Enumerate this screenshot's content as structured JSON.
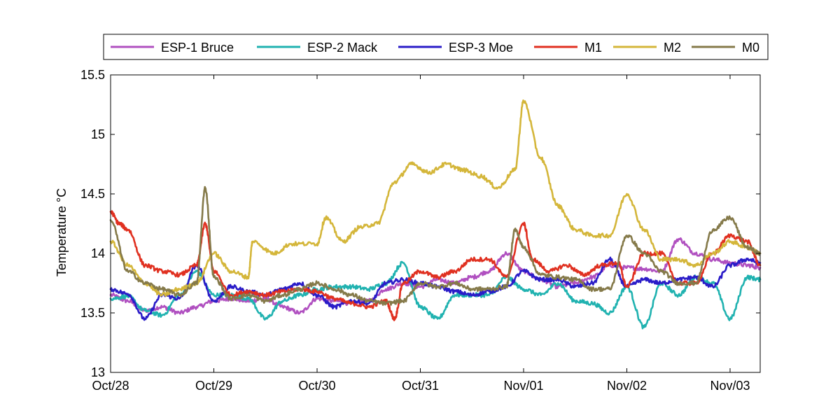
{
  "chart_data": {
    "type": "line",
    "title": "",
    "xlabel": "",
    "ylabel": "Temperature °C",
    "ylim": [
      13,
      15.5
    ],
    "xlim": [
      "2013-10-28",
      "2013-11-03T07:00"
    ],
    "yticks": [
      13,
      13.5,
      14,
      14.5,
      15,
      15.5
    ],
    "ytick_labels": [
      "13",
      "13.5",
      "14",
      "14.5",
      "15",
      "15.5"
    ],
    "xticks": [
      "2013-10-28",
      "2013-10-29",
      "2013-10-30",
      "2013-10-31",
      "2013-11-01",
      "2013-11-02",
      "2013-11-03"
    ],
    "xtick_labels": [
      "Oct/28",
      "Oct/29",
      "Oct/30",
      "Oct/31",
      "Nov/01",
      "Nov/02",
      "Nov/03"
    ],
    "grid": false,
    "legend": {
      "position": "top",
      "orientation": "horizontal"
    },
    "series": [
      {
        "name": "ESP-1 Bruce",
        "color": "#b050c0",
        "points": [
          [
            "2013-10-28T00:00",
            13.65
          ],
          [
            "2013-10-28T04:00",
            13.6
          ],
          [
            "2013-10-28T08:00",
            13.52
          ],
          [
            "2013-10-28T12:00",
            13.55
          ],
          [
            "2013-10-28T16:00",
            13.5
          ],
          [
            "2013-10-28T20:00",
            13.55
          ],
          [
            "2013-10-29T00:00",
            13.6
          ],
          [
            "2013-10-29T04:00",
            13.62
          ],
          [
            "2013-10-29T08:00",
            13.6
          ],
          [
            "2013-10-29T12:00",
            13.62
          ],
          [
            "2013-10-29T16:00",
            13.55
          ],
          [
            "2013-10-29T20:00",
            13.5
          ],
          [
            "2013-10-30T00:00",
            13.62
          ],
          [
            "2013-10-30T04:00",
            13.6
          ],
          [
            "2013-10-30T08:00",
            13.58
          ],
          [
            "2013-10-30T12:00",
            13.6
          ],
          [
            "2013-10-30T16:00",
            13.7
          ],
          [
            "2013-10-30T20:00",
            13.75
          ],
          [
            "2013-10-31T00:00",
            13.72
          ],
          [
            "2013-10-31T04:00",
            13.78
          ],
          [
            "2013-10-31T08:00",
            13.75
          ],
          [
            "2013-10-31T12:00",
            13.8
          ],
          [
            "2013-10-31T16:00",
            13.85
          ],
          [
            "2013-10-31T20:00",
            14.0
          ],
          [
            "2013-11-01T00:00",
            13.85
          ],
          [
            "2013-11-01T04:00",
            13.78
          ],
          [
            "2013-11-01T08:00",
            13.72
          ],
          [
            "2013-11-01T12:00",
            13.75
          ],
          [
            "2013-11-01T16:00",
            13.8
          ],
          [
            "2013-11-01T20:00",
            13.9
          ],
          [
            "2013-11-02T00:00",
            13.88
          ],
          [
            "2013-11-02T04:00",
            13.87
          ],
          [
            "2013-11-02T08:00",
            13.85
          ],
          [
            "2013-11-02T12:00",
            14.12
          ],
          [
            "2013-11-02T16:00",
            14.0
          ],
          [
            "2013-11-02T20:00",
            13.95
          ],
          [
            "2013-11-03T00:00",
            13.92
          ],
          [
            "2013-11-03T04:00",
            13.9
          ],
          [
            "2013-11-03T07:00",
            13.88
          ]
        ]
      },
      {
        "name": "ESP-2 Mack",
        "color": "#20b2b0",
        "points": [
          [
            "2013-10-28T00:00",
            13.62
          ],
          [
            "2013-10-28T04:00",
            13.64
          ],
          [
            "2013-10-28T08:00",
            13.52
          ],
          [
            "2013-10-28T12:00",
            13.48
          ],
          [
            "2013-10-28T16:00",
            13.65
          ],
          [
            "2013-10-28T20:00",
            13.85
          ],
          [
            "2013-10-29T00:00",
            13.65
          ],
          [
            "2013-10-29T04:00",
            13.65
          ],
          [
            "2013-10-29T08:00",
            13.62
          ],
          [
            "2013-10-29T12:00",
            13.45
          ],
          [
            "2013-10-29T16:00",
            13.6
          ],
          [
            "2013-10-29T20:00",
            13.65
          ],
          [
            "2013-10-30T00:00",
            13.7
          ],
          [
            "2013-10-30T04:00",
            13.72
          ],
          [
            "2013-10-30T08:00",
            13.72
          ],
          [
            "2013-10-30T12:00",
            13.7
          ],
          [
            "2013-10-30T16:00",
            13.75
          ],
          [
            "2013-10-30T20:00",
            13.92
          ],
          [
            "2013-10-31T00:00",
            13.55
          ],
          [
            "2013-10-31T04:00",
            13.45
          ],
          [
            "2013-10-31T08:00",
            13.65
          ],
          [
            "2013-10-31T12:00",
            13.65
          ],
          [
            "2013-10-31T16:00",
            13.65
          ],
          [
            "2013-10-31T20:00",
            13.8
          ],
          [
            "2013-11-01T00:00",
            13.7
          ],
          [
            "2013-11-01T04:00",
            13.65
          ],
          [
            "2013-11-01T08:00",
            13.75
          ],
          [
            "2013-11-01T12:00",
            13.6
          ],
          [
            "2013-11-01T16:00",
            13.58
          ],
          [
            "2013-11-01T20:00",
            13.5
          ],
          [
            "2013-11-02T00:00",
            13.72
          ],
          [
            "2013-11-02T04:00",
            13.38
          ],
          [
            "2013-11-02T08:00",
            13.75
          ],
          [
            "2013-11-02T12:00",
            13.65
          ],
          [
            "2013-11-02T16:00",
            13.8
          ],
          [
            "2013-11-02T20:00",
            13.75
          ],
          [
            "2013-11-03T00:00",
            13.45
          ],
          [
            "2013-11-03T04:00",
            13.8
          ],
          [
            "2013-11-03T07:00",
            13.78
          ]
        ]
      },
      {
        "name": "ESP-3 Moe",
        "color": "#2a1cc8",
        "points": [
          [
            "2013-10-28T00:00",
            13.7
          ],
          [
            "2013-10-28T04:00",
            13.66
          ],
          [
            "2013-10-28T08:00",
            13.45
          ],
          [
            "2013-10-28T12:00",
            13.65
          ],
          [
            "2013-10-28T16:00",
            13.62
          ],
          [
            "2013-10-28T20:00",
            13.9
          ],
          [
            "2013-10-29T00:00",
            13.6
          ],
          [
            "2013-10-29T04:00",
            13.72
          ],
          [
            "2013-10-29T08:00",
            13.68
          ],
          [
            "2013-10-29T12:00",
            13.65
          ],
          [
            "2013-10-29T16:00",
            13.7
          ],
          [
            "2013-10-29T20:00",
            13.75
          ],
          [
            "2013-10-30T00:00",
            13.65
          ],
          [
            "2013-10-30T04:00",
            13.55
          ],
          [
            "2013-10-30T08:00",
            13.6
          ],
          [
            "2013-10-30T12:00",
            13.58
          ],
          [
            "2013-10-30T16:00",
            13.75
          ],
          [
            "2013-10-30T20:00",
            13.78
          ],
          [
            "2013-10-31T00:00",
            13.75
          ],
          [
            "2013-10-31T04:00",
            13.72
          ],
          [
            "2013-10-31T08:00",
            13.68
          ],
          [
            "2013-10-31T12:00",
            13.65
          ],
          [
            "2013-10-31T16:00",
            13.68
          ],
          [
            "2013-10-31T20:00",
            13.72
          ],
          [
            "2013-11-01T00:00",
            13.85
          ],
          [
            "2013-11-01T04:00",
            13.78
          ],
          [
            "2013-11-01T08:00",
            13.78
          ],
          [
            "2013-11-01T12:00",
            13.72
          ],
          [
            "2013-11-01T16:00",
            13.75
          ],
          [
            "2013-11-01T20:00",
            13.95
          ],
          [
            "2013-11-02T00:00",
            13.72
          ],
          [
            "2013-11-02T04:00",
            13.78
          ],
          [
            "2013-11-02T08:00",
            13.75
          ],
          [
            "2013-11-02T12:00",
            13.78
          ],
          [
            "2013-11-02T16:00",
            13.8
          ],
          [
            "2013-11-02T20:00",
            13.72
          ],
          [
            "2013-11-03T00:00",
            13.9
          ],
          [
            "2013-11-03T04:00",
            13.95
          ],
          [
            "2013-11-03T07:00",
            13.92
          ]
        ]
      },
      {
        "name": "M1",
        "color": "#e03020",
        "points": [
          [
            "2013-10-28T00:00",
            14.35
          ],
          [
            "2013-10-28T02:00",
            14.25
          ],
          [
            "2013-10-28T04:00",
            14.2
          ],
          [
            "2013-10-28T08:00",
            13.9
          ],
          [
            "2013-10-28T12:00",
            13.85
          ],
          [
            "2013-10-28T16:00",
            13.82
          ],
          [
            "2013-10-28T20:00",
            13.9
          ],
          [
            "2013-10-28T22:00",
            14.25
          ],
          [
            "2013-10-29T00:00",
            13.85
          ],
          [
            "2013-10-29T04:00",
            13.65
          ],
          [
            "2013-10-29T08:00",
            13.68
          ],
          [
            "2013-10-29T12:00",
            13.65
          ],
          [
            "2013-10-29T16:00",
            13.68
          ],
          [
            "2013-10-29T20:00",
            13.7
          ],
          [
            "2013-10-30T00:00",
            13.68
          ],
          [
            "2013-10-30T04:00",
            13.62
          ],
          [
            "2013-10-30T08:00",
            13.58
          ],
          [
            "2013-10-30T12:00",
            13.55
          ],
          [
            "2013-10-30T16:00",
            13.6
          ],
          [
            "2013-10-30T18:00",
            13.45
          ],
          [
            "2013-10-30T20:00",
            13.75
          ],
          [
            "2013-10-31T00:00",
            13.85
          ],
          [
            "2013-10-31T04:00",
            13.8
          ],
          [
            "2013-10-31T08:00",
            13.85
          ],
          [
            "2013-10-31T12:00",
            13.95
          ],
          [
            "2013-10-31T16:00",
            13.95
          ],
          [
            "2013-10-31T20:00",
            13.8
          ],
          [
            "2013-11-01T00:00",
            14.25
          ],
          [
            "2013-11-01T02:00",
            13.95
          ],
          [
            "2013-11-01T06:00",
            13.85
          ],
          [
            "2013-11-01T10:00",
            13.9
          ],
          [
            "2013-11-01T14:00",
            13.82
          ],
          [
            "2013-11-01T18:00",
            13.9
          ],
          [
            "2013-11-01T22:00",
            13.92
          ],
          [
            "2013-11-02T00:00",
            13.72
          ],
          [
            "2013-11-02T04:00",
            14.0
          ],
          [
            "2013-11-02T08:00",
            14.0
          ],
          [
            "2013-11-02T12:00",
            13.75
          ],
          [
            "2013-11-02T16:00",
            13.75
          ],
          [
            "2013-11-02T20:00",
            14.0
          ],
          [
            "2013-11-03T00:00",
            14.15
          ],
          [
            "2013-11-03T04:00",
            14.1
          ],
          [
            "2013-11-03T07:00",
            13.9
          ]
        ]
      },
      {
        "name": "M2",
        "color": "#d4b63a",
        "points": [
          [
            "2013-10-28T00:00",
            14.1
          ],
          [
            "2013-10-28T04:00",
            13.9
          ],
          [
            "2013-10-28T08:00",
            13.75
          ],
          [
            "2013-10-28T12:00",
            13.65
          ],
          [
            "2013-10-28T16:00",
            13.7
          ],
          [
            "2013-10-28T20:00",
            13.75
          ],
          [
            "2013-10-29T00:00",
            14.0
          ],
          [
            "2013-10-29T04:00",
            13.85
          ],
          [
            "2013-10-29T08:00",
            13.8
          ],
          [
            "2013-10-29T09:00",
            14.1
          ],
          [
            "2013-10-29T14:00",
            14.0
          ],
          [
            "2013-10-29T18:00",
            14.08
          ],
          [
            "2013-10-30T00:00",
            14.08
          ],
          [
            "2013-10-30T02:00",
            14.3
          ],
          [
            "2013-10-30T06:00",
            14.1
          ],
          [
            "2013-10-30T10:00",
            14.22
          ],
          [
            "2013-10-30T14:00",
            14.25
          ],
          [
            "2013-10-30T18:00",
            14.6
          ],
          [
            "2013-10-30T22:00",
            14.75
          ],
          [
            "2013-10-31T02:00",
            14.68
          ],
          [
            "2013-10-31T06:00",
            14.75
          ],
          [
            "2013-10-31T10:00",
            14.7
          ],
          [
            "2013-10-31T14:00",
            14.65
          ],
          [
            "2013-10-31T18:00",
            14.55
          ],
          [
            "2013-10-31T22:00",
            14.7
          ],
          [
            "2013-11-01T00:00",
            15.28
          ],
          [
            "2013-11-01T04:00",
            14.8
          ],
          [
            "2013-11-01T08:00",
            14.4
          ],
          [
            "2013-11-01T12:00",
            14.2
          ],
          [
            "2013-11-01T16:00",
            14.15
          ],
          [
            "2013-11-01T20:00",
            14.15
          ],
          [
            "2013-11-02T00:00",
            14.5
          ],
          [
            "2013-11-02T04:00",
            14.2
          ],
          [
            "2013-11-02T08:00",
            13.95
          ],
          [
            "2013-11-02T12:00",
            13.95
          ],
          [
            "2013-11-02T16:00",
            13.9
          ],
          [
            "2013-11-02T20:00",
            14.0
          ],
          [
            "2013-11-03T00:00",
            14.1
          ],
          [
            "2013-11-03T04:00",
            14.05
          ],
          [
            "2013-11-03T07:00",
            14.0
          ]
        ]
      },
      {
        "name": "M0",
        "color": "#857a4a",
        "points": [
          [
            "2013-10-28T00:00",
            14.28
          ],
          [
            "2013-10-28T04:00",
            13.85
          ],
          [
            "2013-10-28T08:00",
            13.75
          ],
          [
            "2013-10-28T12:00",
            13.7
          ],
          [
            "2013-10-28T16:00",
            13.65
          ],
          [
            "2013-10-28T20:00",
            13.75
          ],
          [
            "2013-10-28T22:00",
            14.55
          ],
          [
            "2013-10-29T00:00",
            13.8
          ],
          [
            "2013-10-29T04:00",
            13.62
          ],
          [
            "2013-10-29T08:00",
            13.65
          ],
          [
            "2013-10-29T12:00",
            13.6
          ],
          [
            "2013-10-29T16:00",
            13.65
          ],
          [
            "2013-10-29T20:00",
            13.7
          ],
          [
            "2013-10-30T00:00",
            13.75
          ],
          [
            "2013-10-30T04:00",
            13.7
          ],
          [
            "2013-10-30T08:00",
            13.65
          ],
          [
            "2013-10-30T12:00",
            13.6
          ],
          [
            "2013-10-30T16:00",
            13.58
          ],
          [
            "2013-10-30T20:00",
            13.6
          ],
          [
            "2013-10-31T00:00",
            13.75
          ],
          [
            "2013-10-31T04:00",
            13.72
          ],
          [
            "2013-10-31T08:00",
            13.75
          ],
          [
            "2013-10-31T12:00",
            13.7
          ],
          [
            "2013-10-31T16:00",
            13.7
          ],
          [
            "2013-10-31T20:00",
            13.72
          ],
          [
            "2013-10-31T22:00",
            14.2
          ],
          [
            "2013-11-01T00:00",
            14.05
          ],
          [
            "2013-11-01T04:00",
            13.82
          ],
          [
            "2013-11-01T08:00",
            13.8
          ],
          [
            "2013-11-01T12:00",
            13.78
          ],
          [
            "2013-11-01T16:00",
            13.7
          ],
          [
            "2013-11-01T20:00",
            13.7
          ],
          [
            "2013-11-02T00:00",
            14.15
          ],
          [
            "2013-11-02T04:00",
            14.0
          ],
          [
            "2013-11-02T08:00",
            13.85
          ],
          [
            "2013-11-02T12:00",
            13.75
          ],
          [
            "2013-11-02T16:00",
            13.75
          ],
          [
            "2013-11-02T20:00",
            14.2
          ],
          [
            "2013-11-03T00:00",
            14.3
          ],
          [
            "2013-11-03T04:00",
            14.05
          ],
          [
            "2013-11-03T07:00",
            14.0
          ]
        ]
      }
    ]
  }
}
